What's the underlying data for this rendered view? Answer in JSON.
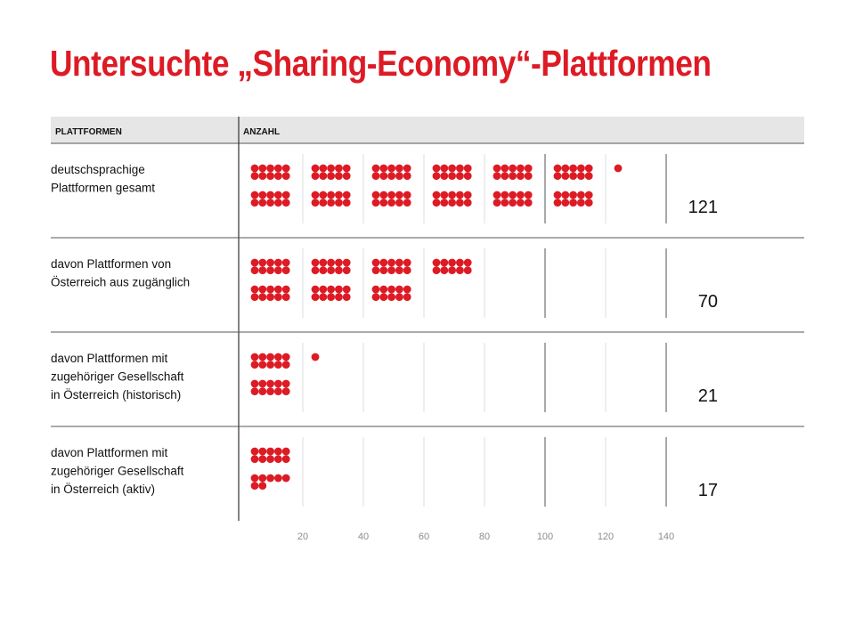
{
  "title": "Untersuchte „Sharing-Economy“-Plattformen",
  "chart_data": {
    "type": "bar",
    "title": "Untersuchte „Sharing-Economy“-Plattformen",
    "column_headers": {
      "category": "PLATTFORMEN",
      "value": "ANZAHL"
    },
    "categories": [
      [
        "deutschsprachige",
        "Plattformen gesamt"
      ],
      [
        "davon Plattformen von",
        "Österreich aus zugänglich"
      ],
      [
        "davon Plattformen mit",
        "zugehöriger Gesellschaft",
        "in Österreich (historisch)"
      ],
      [
        "davon Plattformen mit",
        "zugehöriger Gesellschaft",
        "in Österreich (aktiv)"
      ]
    ],
    "values": [
      121,
      70,
      21,
      17
    ],
    "xticks": [
      20,
      40,
      60,
      80,
      100,
      120,
      140
    ],
    "xlim": [
      0,
      140
    ],
    "marker": "dot",
    "units_per_dot": 1,
    "colors": {
      "dots": "#dd1b25",
      "title": "#dd1b25",
      "header_bg": "#e6e6e6",
      "text": "#111111",
      "tick": "#8c8c8c"
    }
  }
}
